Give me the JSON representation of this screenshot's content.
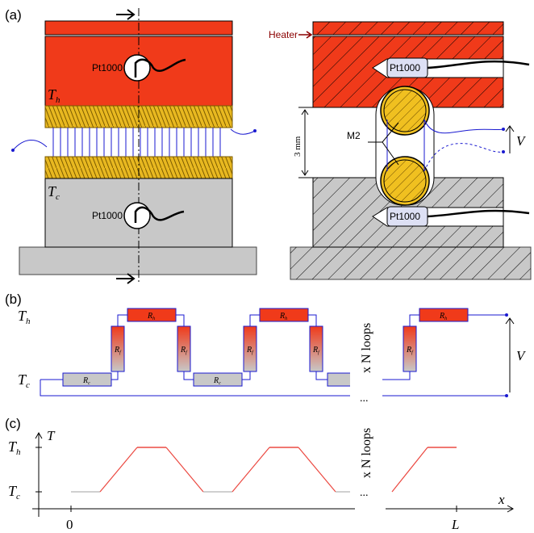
{
  "panels": {
    "a": {
      "label": "(a)"
    },
    "b": {
      "label": "(b)"
    },
    "c": {
      "label": "(c)"
    }
  },
  "left_assembly": {
    "sensor_top": "Pt1000",
    "sensor_bottom": "Pt1000",
    "t_hot": "T",
    "t_hot_sub": "h",
    "t_cold": "T",
    "t_cold_sub": "c"
  },
  "right_assembly": {
    "heater": "Heater",
    "sensor_top": "Pt1000",
    "sensor_bottom": "Pt1000",
    "gap": "3 mm",
    "wire": "M2",
    "voltage": "V"
  },
  "circuit": {
    "t_hot": "T",
    "t_hot_sub": "h",
    "t_cold": "T",
    "t_cold_sub": "c",
    "r_h": "R",
    "r_h_sub": "h",
    "r_f": "R",
    "r_f_sub": "f",
    "r_c": "R",
    "r_c_sub": "c",
    "loops": "x N loops",
    "dots": "...",
    "voltage": "V"
  },
  "profile": {
    "y_axis": "T",
    "x_axis": "x",
    "t_hot": "T",
    "t_hot_sub": "h",
    "t_cold": "T",
    "t_cold_sub": "c",
    "x_zero": "0",
    "x_end": "L",
    "loops": "x N loops",
    "dots": "...",
    "colors": {
      "hot": "#e8281e",
      "cold": "#b4b4b4"
    }
  },
  "colors": {
    "hot_block": "#f03a1a",
    "cold_block": "#c8c8c8",
    "base": "#c8c8c8",
    "gold": "#f0c020",
    "wire": "#1a1ad0",
    "heater": "#8b0000"
  }
}
